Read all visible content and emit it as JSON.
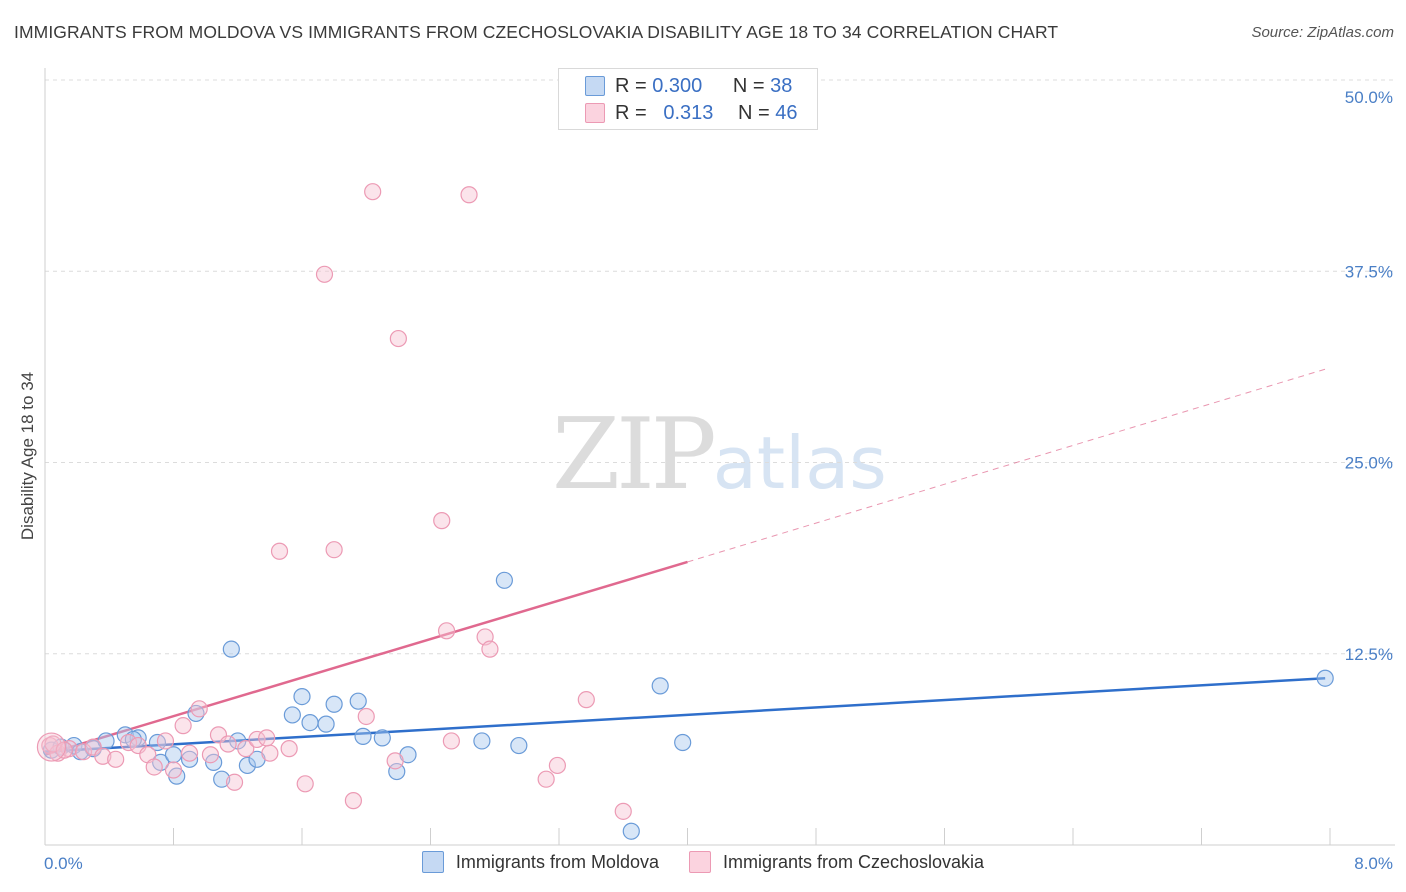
{
  "chart_data": {
    "type": "scatter",
    "title": "IMMIGRANTS FROM MOLDOVA VS IMMIGRANTS FROM CZECHOSLOVAKIA DISABILITY AGE 18 TO 34 CORRELATION CHART",
    "source": "Source: ZipAtlas.com",
    "ylabel": "Disability Age 18 to 34",
    "xlabel": "",
    "xlim": [
      0,
      8
    ],
    "ylim": [
      0,
      50
    ],
    "x_tick_labels": [
      "0.0%",
      "8.0%"
    ],
    "y_ticks": [
      12.5,
      25.0,
      37.5,
      50.0
    ],
    "y_tick_labels": [
      "12.5%",
      "25.0%",
      "37.5%",
      "50.0%"
    ],
    "legend": {
      "rows": [
        {
          "r_label": "R =",
          "r_value": "0.300",
          "n_label": "N =",
          "n_value": "38"
        },
        {
          "r_label": "R =",
          "r_value": "0.313",
          "n_label": "N =",
          "n_value": "46"
        }
      ]
    },
    "watermark": {
      "zip": "ZIP",
      "atlas": "atlas"
    },
    "series": [
      {
        "name": "Immigrants from Moldova",
        "color": "#6a9bd8",
        "fill": "#a9c7ee",
        "trend_color": "#2f6fcb",
        "trend": {
          "x0": 0.0,
          "y0": 6.1,
          "x1": 7.97,
          "y1": 10.9
        },
        "points": [
          [
            0.04,
            6.2
          ],
          [
            0.1,
            6.4
          ],
          [
            0.18,
            6.5
          ],
          [
            0.3,
            6.3
          ],
          [
            0.38,
            6.8
          ],
          [
            0.5,
            7.2
          ],
          [
            0.58,
            7.0
          ],
          [
            0.7,
            6.7
          ],
          [
            0.72,
            5.4
          ],
          [
            0.8,
            5.9
          ],
          [
            0.82,
            4.5
          ],
          [
            0.9,
            5.6
          ],
          [
            0.94,
            8.6
          ],
          [
            1.05,
            5.4
          ],
          [
            1.1,
            4.3
          ],
          [
            1.2,
            6.8
          ],
          [
            1.26,
            5.2
          ],
          [
            1.32,
            5.6
          ],
          [
            1.16,
            12.8
          ],
          [
            1.54,
            8.5
          ],
          [
            1.6,
            9.7
          ],
          [
            1.65,
            8.0
          ],
          [
            1.75,
            7.9
          ],
          [
            1.8,
            9.2
          ],
          [
            1.95,
            9.4
          ],
          [
            1.98,
            7.1
          ],
          [
            2.1,
            7.0
          ],
          [
            2.19,
            4.8
          ],
          [
            2.26,
            5.9
          ],
          [
            2.72,
            6.8
          ],
          [
            2.86,
            17.3
          ],
          [
            2.95,
            6.5
          ],
          [
            3.65,
            0.9
          ],
          [
            3.83,
            10.4
          ],
          [
            3.97,
            6.7
          ],
          [
            7.97,
            10.9
          ],
          [
            0.55,
            6.9
          ],
          [
            0.22,
            6.1
          ]
        ]
      },
      {
        "name": "Immigrants from Czechoslovakia",
        "color": "#ec9ab4",
        "fill": "#f6c3d3",
        "trend_color": "#e0698f",
        "trend": {
          "x0": 0.0,
          "y0": 5.9,
          "x1": 4.0,
          "y1": 18.5
        },
        "trend_dashed": {
          "x0": 4.0,
          "y0": 18.5,
          "x1": 7.97,
          "y1": 31.1
        },
        "points": [
          [
            0.03,
            6.5
          ],
          [
            0.08,
            6.0
          ],
          [
            0.15,
            6.3
          ],
          [
            0.24,
            6.1
          ],
          [
            0.3,
            6.4
          ],
          [
            0.36,
            5.8
          ],
          [
            0.44,
            5.6
          ],
          [
            0.52,
            6.7
          ],
          [
            0.58,
            6.5
          ],
          [
            0.64,
            5.9
          ],
          [
            0.68,
            5.1
          ],
          [
            0.75,
            6.8
          ],
          [
            0.8,
            4.9
          ],
          [
            0.86,
            7.8
          ],
          [
            0.9,
            6.0
          ],
          [
            0.96,
            8.9
          ],
          [
            1.03,
            5.9
          ],
          [
            1.08,
            7.2
          ],
          [
            1.14,
            6.6
          ],
          [
            1.18,
            4.1
          ],
          [
            1.25,
            6.3
          ],
          [
            1.32,
            6.9
          ],
          [
            1.4,
            6.0
          ],
          [
            1.46,
            19.2
          ],
          [
            1.52,
            6.3
          ],
          [
            1.62,
            4.0
          ],
          [
            1.74,
            37.3
          ],
          [
            1.8,
            19.3
          ],
          [
            1.92,
            2.9
          ],
          [
            2.0,
            8.4
          ],
          [
            2.04,
            42.7
          ],
          [
            2.18,
            5.5
          ],
          [
            2.2,
            33.1
          ],
          [
            2.47,
            21.2
          ],
          [
            2.5,
            14.0
          ],
          [
            2.53,
            6.8
          ],
          [
            2.64,
            42.5
          ],
          [
            2.74,
            13.6
          ],
          [
            2.77,
            12.8
          ],
          [
            3.12,
            4.3
          ],
          [
            3.19,
            5.2
          ],
          [
            3.37,
            9.5
          ],
          [
            3.6,
            2.2
          ],
          [
            1.38,
            7.0
          ],
          [
            0.05,
            6.6
          ],
          [
            0.12,
            6.2
          ]
        ]
      }
    ]
  }
}
